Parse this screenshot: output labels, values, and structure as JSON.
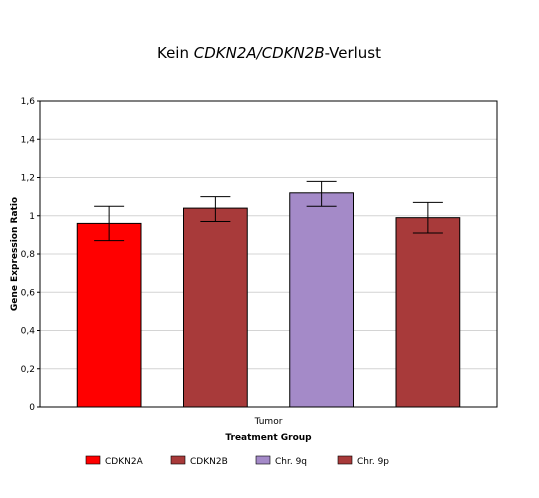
{
  "chart_data": {
    "type": "bar",
    "title_parts": [
      {
        "text": "Kein ",
        "italic": false
      },
      {
        "text": "CDKN2A/CDKN2B",
        "italic": true
      },
      {
        "text": "-Verlust",
        "italic": false
      }
    ],
    "xlabel": "Treatment Group",
    "ylabel": "Gene Expression Ratio",
    "categories": [
      "Tumor"
    ],
    "ylim": [
      0,
      1.6
    ],
    "yticks": [
      0,
      0.2,
      0.4,
      0.6,
      0.8,
      1,
      1.2,
      1.4,
      1.6
    ],
    "ytick_labels": [
      "0",
      "0,2",
      "0,4",
      "0,6",
      "0,8",
      "1",
      "1,2",
      "1,4",
      "1,6"
    ],
    "grid": true,
    "legend_position": "bottom",
    "series": [
      {
        "name": "CDKN2A",
        "values": [
          0.96
        ],
        "error_low": [
          0.87
        ],
        "error_high": [
          1.05
        ],
        "color": "#ff0000"
      },
      {
        "name": "CDKN2B",
        "values": [
          1.04
        ],
        "error_low": [
          0.97
        ],
        "error_high": [
          1.1
        ],
        "color": "#a83a3a"
      },
      {
        "name": "Chr. 9q",
        "values": [
          1.12
        ],
        "error_low": [
          1.05
        ],
        "error_high": [
          1.18
        ],
        "color": "#a48ac8"
      },
      {
        "name": "Chr. 9p",
        "values": [
          0.99
        ],
        "error_low": [
          0.91
        ],
        "error_high": [
          1.07
        ],
        "color": "#a83a3a"
      }
    ]
  }
}
